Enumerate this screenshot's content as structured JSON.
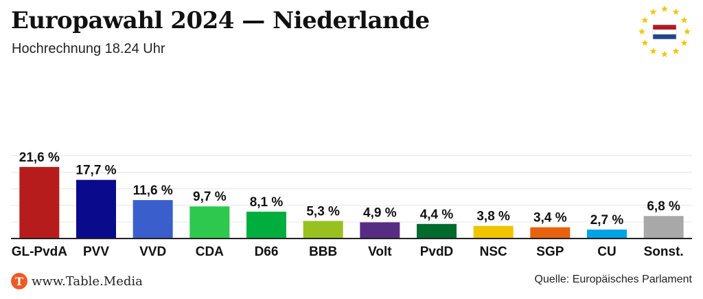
{
  "header": {
    "title": "Europawahl 2024 — Niederlande",
    "subtitle": "Hochrechnung 18.24 Uhr"
  },
  "footer": {
    "brand_letter": "T",
    "brand_url": "www.Table.Media",
    "source": "Quelle: Europäisches Parlament"
  },
  "colors": {
    "eu_star": "#f5c400",
    "flag_red": "#ae1c28",
    "flag_white": "#ffffff",
    "flag_blue": "#21468b",
    "brand": "#ee5a24",
    "grid": "#e6e6e6",
    "axis": "#222222"
  },
  "chart_data": {
    "type": "bar",
    "title": "Europawahl 2024 — Niederlande",
    "subtitle": "Hochrechnung 18.24 Uhr",
    "categories": [
      "GL-PvdA",
      "PVV",
      "VVD",
      "CDA",
      "D66",
      "BBB",
      "Volt",
      "PvdD",
      "NSC",
      "SGP",
      "CU",
      "Sonst."
    ],
    "values": [
      21.6,
      17.7,
      11.6,
      9.7,
      8.1,
      5.3,
      4.9,
      4.4,
      3.8,
      3.4,
      2.7,
      6.8
    ],
    "value_labels": [
      "21,6 %",
      "17,7 %",
      "11,6 %",
      "9,7 %",
      "8,1 %",
      "5,3 %",
      "4,9 %",
      "4,4 %",
      "3,8 %",
      "3,4 %",
      "2,7 %",
      "6,8 %"
    ],
    "colors": [
      "#b71c1c",
      "#0a0a8c",
      "#3a5fcd",
      "#2ec84f",
      "#00ae3e",
      "#98c11f",
      "#582c83",
      "#006b2d",
      "#f0c400",
      "#e8610f",
      "#00a3e8",
      "#a8a8a8"
    ],
    "xlabel": "",
    "ylabel": "",
    "ylim": [
      0,
      25
    ],
    "grid": true
  }
}
